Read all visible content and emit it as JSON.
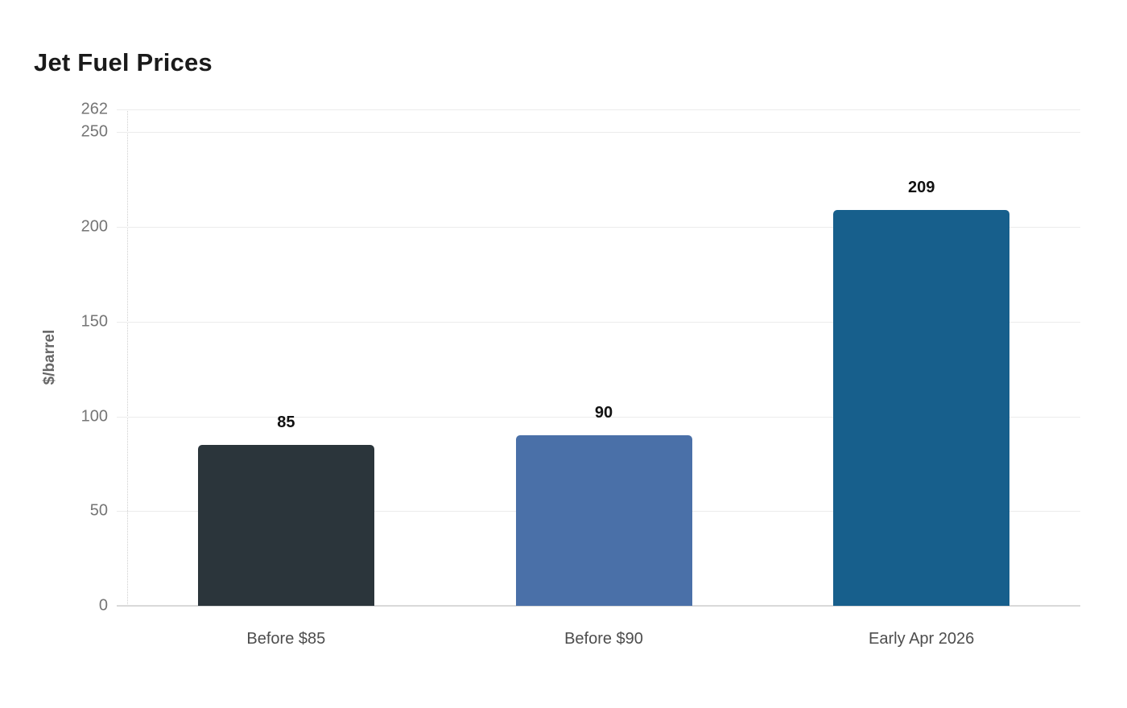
{
  "chart_data": {
    "type": "bar",
    "title": "Jet Fuel Prices",
    "xlabel": "",
    "ylabel": "$/barrel",
    "categories": [
      "Before $85",
      "Before $90",
      "Early Apr 2026"
    ],
    "values": [
      85,
      90,
      209
    ],
    "data_labels": [
      "85",
      "90",
      "209"
    ],
    "yticks": [
      262,
      250,
      200,
      150,
      100,
      50,
      0
    ],
    "ylim": [
      0,
      262
    ],
    "bar_colors": [
      "#2b353b",
      "#4a70a8",
      "#175f8c"
    ],
    "grid": true,
    "legend_position": "none",
    "background_color": "#ffffff",
    "title_color": "#1a1a1a",
    "axis_text_color": "#757575",
    "category_text_color": "#4d4d4d"
  }
}
